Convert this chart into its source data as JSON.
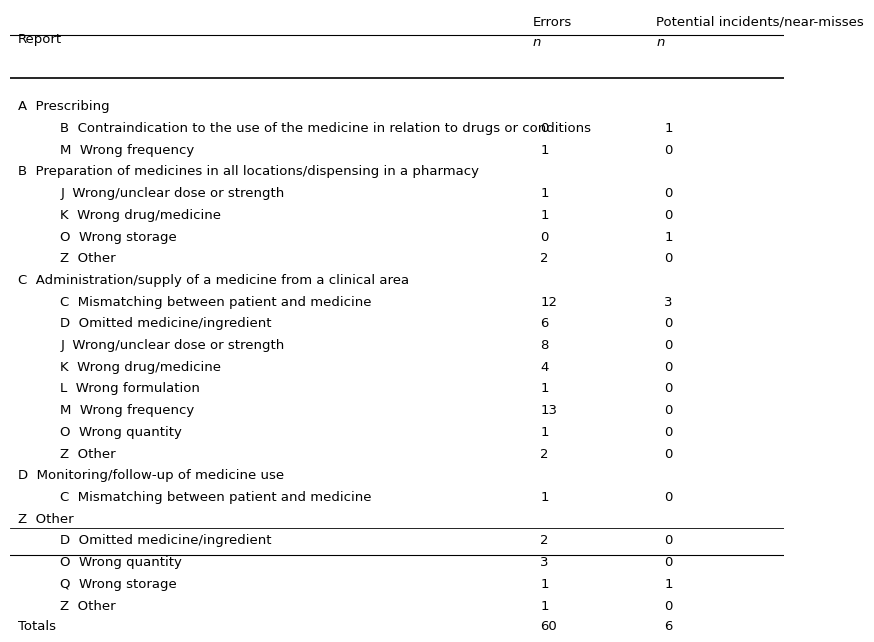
{
  "header_col1": "Report",
  "header_col2_line1": "Errors",
  "header_col2_line2": "n",
  "header_col3_line1": "Potential incidents/near-misses",
  "header_col3_line2": "n",
  "rows": [
    {
      "text": "A  Prescribing",
      "indent": 0,
      "errors": "",
      "incidents": "",
      "is_section": true
    },
    {
      "text": "B  Contraindication to the use of the medicine in relation to drugs or conditions",
      "indent": 1,
      "errors": "0",
      "incidents": "1",
      "is_section": false
    },
    {
      "text": "M  Wrong frequency",
      "indent": 1,
      "errors": "1",
      "incidents": "0",
      "is_section": false
    },
    {
      "text": "B  Preparation of medicines in all locations/dispensing in a pharmacy",
      "indent": 0,
      "errors": "",
      "incidents": "",
      "is_section": true
    },
    {
      "text": "J  Wrong/unclear dose or strength",
      "indent": 1,
      "errors": "1",
      "incidents": "0",
      "is_section": false
    },
    {
      "text": "K  Wrong drug/medicine",
      "indent": 1,
      "errors": "1",
      "incidents": "0",
      "is_section": false
    },
    {
      "text": "O  Wrong storage",
      "indent": 1,
      "errors": "0",
      "incidents": "1",
      "is_section": false
    },
    {
      "text": "Z  Other",
      "indent": 1,
      "errors": "2",
      "incidents": "0",
      "is_section": false
    },
    {
      "text": "C  Administration/supply of a medicine from a clinical area",
      "indent": 0,
      "errors": "",
      "incidents": "",
      "is_section": true
    },
    {
      "text": "C  Mismatching between patient and medicine",
      "indent": 1,
      "errors": "12",
      "incidents": "3",
      "is_section": false
    },
    {
      "text": "D  Omitted medicine/ingredient",
      "indent": 1,
      "errors": "6",
      "incidents": "0",
      "is_section": false
    },
    {
      "text": "J  Wrong/unclear dose or strength",
      "indent": 1,
      "errors": "8",
      "incidents": "0",
      "is_section": false
    },
    {
      "text": "K  Wrong drug/medicine",
      "indent": 1,
      "errors": "4",
      "incidents": "0",
      "is_section": false
    },
    {
      "text": "L  Wrong formulation",
      "indent": 1,
      "errors": "1",
      "incidents": "0",
      "is_section": false
    },
    {
      "text": "M  Wrong frequency",
      "indent": 1,
      "errors": "13",
      "incidents": "0",
      "is_section": false
    },
    {
      "text": "O  Wrong quantity",
      "indent": 1,
      "errors": "1",
      "incidents": "0",
      "is_section": false
    },
    {
      "text": "Z  Other",
      "indent": 1,
      "errors": "2",
      "incidents": "0",
      "is_section": false
    },
    {
      "text": "D  Monitoring/follow-up of medicine use",
      "indent": 0,
      "errors": "",
      "incidents": "",
      "is_section": true
    },
    {
      "text": "C  Mismatching between patient and medicine",
      "indent": 1,
      "errors": "1",
      "incidents": "0",
      "is_section": false
    },
    {
      "text": "Z  Other",
      "indent": 0,
      "errors": "",
      "incidents": "",
      "is_section": true
    },
    {
      "text": "D  Omitted medicine/ingredient",
      "indent": 1,
      "errors": "2",
      "incidents": "0",
      "is_section": false
    },
    {
      "text": "O  Wrong quantity",
      "indent": 1,
      "errors": "3",
      "incidents": "0",
      "is_section": false
    },
    {
      "text": "Q  Wrong storage",
      "indent": 1,
      "errors": "1",
      "incidents": "1",
      "is_section": false
    },
    {
      "text": "Z  Other",
      "indent": 1,
      "errors": "1",
      "incidents": "0",
      "is_section": false
    }
  ],
  "totals_label": "Totals",
  "totals_errors": "60",
  "totals_incidents": "6",
  "bg_color": "#ffffff",
  "text_color": "#000000",
  "font_size": 9.5,
  "header_font_size": 9.5
}
